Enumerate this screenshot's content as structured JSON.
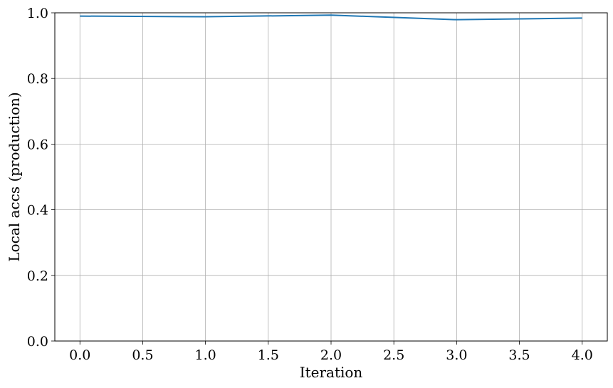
{
  "chart_data": {
    "type": "line",
    "title": "",
    "xlabel": "Iteration",
    "ylabel": "Local accs (production)",
    "xlim": [
      -0.2,
      4.2
    ],
    "ylim": [
      0.0,
      1.0
    ],
    "xticks": [
      "0.0",
      "0.5",
      "1.0",
      "1.5",
      "2.0",
      "2.5",
      "3.0",
      "3.5",
      "4.0"
    ],
    "yticks": [
      "0.0",
      "0.2",
      "0.4",
      "0.6",
      "0.8",
      "1.0"
    ],
    "grid": true,
    "series": [
      {
        "color": "#1f77b4",
        "x": [
          0,
          1,
          2,
          3,
          4
        ],
        "y": [
          0.99,
          0.988,
          0.993,
          0.979,
          0.984
        ]
      }
    ]
  }
}
